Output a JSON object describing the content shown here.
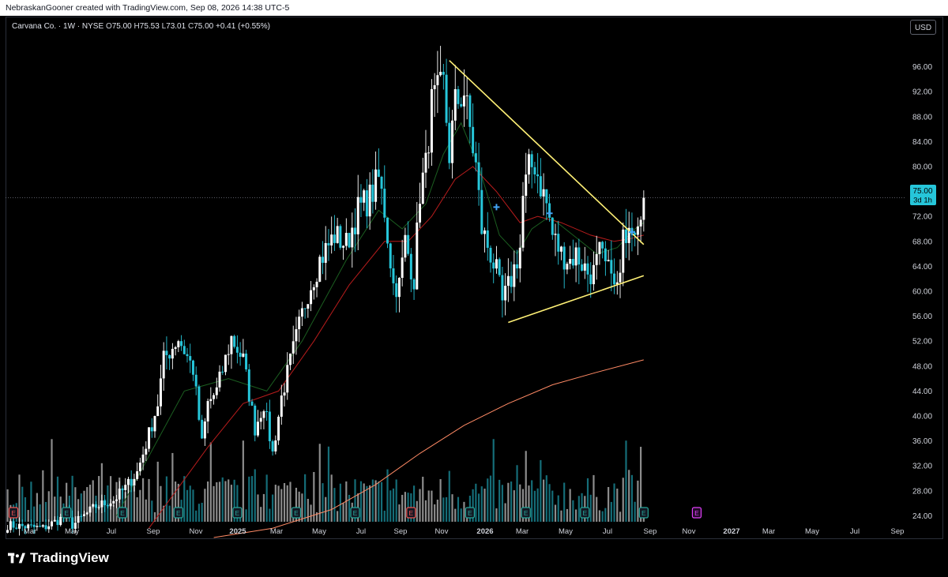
{
  "header": {
    "credit": "NebraskanGooner created with TradingView.com, Sep 08, 2026 14:38 UTC-5"
  },
  "legend": {
    "name": "Carvana Co. · 1W · NYSE",
    "o_label": "O",
    "o": "75.00",
    "h_label": "H",
    "h": "75.53",
    "l_label": "L",
    "l": "73.01",
    "c_label": "C",
    "c": "75.00",
    "change": "+0.41 (+0.55%)"
  },
  "currency_button": "USD",
  "price_tag": {
    "price": "75.00",
    "countdown": "3d 1h"
  },
  "brand": {
    "name": "TradingView"
  },
  "colors": {
    "background": "#000000",
    "up": "#ffffff",
    "down": "#26c6da",
    "ema_fast": "#1b5e20",
    "ema_mid": "#b71c1c",
    "sma_long": "#ff8a65",
    "trendline": "#fff176",
    "earnings": "#ef5350",
    "earnings_future": "#e040fb"
  },
  "chart_data": {
    "type": "candlestick",
    "interval": "1W",
    "ylim": [
      20,
      100
    ],
    "y_ticks": [
      "96.00",
      "92.00",
      "88.00",
      "84.00",
      "80.00",
      "76.00",
      "72.00",
      "68.00",
      "64.00",
      "60.00",
      "56.00",
      "52.00",
      "48.00",
      "44.00",
      "40.00",
      "36.00",
      "32.00",
      "28.00",
      "24.00"
    ],
    "x_ticks": [
      {
        "label": "Mar",
        "x": 38
      },
      {
        "label": "May",
        "x": 91
      },
      {
        "label": "Jul",
        "x": 141
      },
      {
        "label": "Sep",
        "x": 194
      },
      {
        "label": "Nov",
        "x": 248
      },
      {
        "label": "2025",
        "x": 301
      },
      {
        "label": "Mar",
        "x": 350
      },
      {
        "label": "May",
        "x": 404
      },
      {
        "label": "Jul",
        "x": 457
      },
      {
        "label": "Sep",
        "x": 507
      },
      {
        "label": "Nov",
        "x": 559
      },
      {
        "label": "2026",
        "x": 614
      },
      {
        "label": "Mar",
        "x": 661
      },
      {
        "label": "May",
        "x": 716
      },
      {
        "label": "Jul",
        "x": 769
      },
      {
        "label": "Sep",
        "x": 823
      },
      {
        "label": "Nov",
        "x": 872
      },
      {
        "label": "2027",
        "x": 926
      },
      {
        "label": "Mar",
        "x": 973
      },
      {
        "label": "May",
        "x": 1028
      },
      {
        "label": "Jul",
        "x": 1082
      },
      {
        "label": "Sep",
        "x": 1136
      }
    ],
    "last_price": 75.0,
    "anchors": [
      [
        0,
        22.5
      ],
      [
        12,
        22.0
      ],
      [
        20,
        24.0
      ],
      [
        22,
        22.5
      ],
      [
        30,
        25.5
      ],
      [
        36,
        26.5
      ],
      [
        40,
        28.5
      ],
      [
        44,
        31.0
      ],
      [
        47,
        35.5
      ],
      [
        51,
        42.0
      ],
      [
        53,
        49.0
      ],
      [
        58,
        52.5
      ],
      [
        63,
        47.5
      ],
      [
        66,
        35.5
      ],
      [
        68,
        42.0
      ],
      [
        71,
        44.0
      ],
      [
        76,
        52.5
      ],
      [
        80,
        49.0
      ],
      [
        84,
        38.0
      ],
      [
        87,
        42.0
      ],
      [
        90,
        34.0
      ],
      [
        93,
        43.0
      ],
      [
        98,
        52.5
      ],
      [
        102,
        60.0
      ],
      [
        106,
        65.0
      ],
      [
        111,
        69.0
      ],
      [
        115,
        67.5
      ],
      [
        119,
        73.0
      ],
      [
        123,
        75.0
      ],
      [
        126,
        78.0
      ],
      [
        128,
        73.0
      ],
      [
        131,
        61.0
      ],
      [
        133,
        61.0
      ],
      [
        135,
        68.0
      ],
      [
        138,
        62.0
      ],
      [
        140,
        76.0
      ],
      [
        142,
        80.0
      ],
      [
        144,
        90.0
      ],
      [
        148,
        93.0
      ],
      [
        150,
        82.0
      ],
      [
        152,
        90.0
      ],
      [
        155,
        92.0
      ],
      [
        159,
        80.0
      ],
      [
        161,
        70.0
      ],
      [
        164,
        66.0
      ],
      [
        166,
        63.0
      ],
      [
        168,
        58.0
      ],
      [
        171,
        62.0
      ],
      [
        174,
        67.0
      ],
      [
        175,
        75.0
      ],
      [
        177,
        79.5
      ],
      [
        179,
        80.5
      ],
      [
        181,
        77.0
      ],
      [
        183,
        74.0
      ],
      [
        185,
        69.0
      ],
      [
        188,
        66.0
      ],
      [
        191,
        65.0
      ],
      [
        193,
        66.0
      ],
      [
        197,
        63.0
      ],
      [
        199,
        63.0
      ],
      [
        201,
        66.0
      ],
      [
        204,
        63.0
      ],
      [
        205,
        65.0
      ],
      [
        206,
        60.0
      ],
      [
        208,
        62.0
      ],
      [
        209,
        68.0
      ],
      [
        211,
        72.0
      ],
      [
        213,
        71.0
      ],
      [
        215,
        74.0
      ],
      [
        216,
        75.0
      ]
    ],
    "ema_fast": [
      [
        37,
        24.0
      ],
      [
        60,
        44.0
      ],
      [
        75,
        46.0
      ],
      [
        88,
        44.0
      ],
      [
        100,
        52.0
      ],
      [
        115,
        65.0
      ],
      [
        126,
        73.0
      ],
      [
        134,
        70.0
      ],
      [
        142,
        74.0
      ],
      [
        148,
        82.0
      ],
      [
        154,
        87.0
      ],
      [
        160,
        80.0
      ],
      [
        167,
        69.0
      ],
      [
        173,
        66.0
      ],
      [
        178,
        70.0
      ],
      [
        184,
        72.0
      ],
      [
        192,
        69.0
      ],
      [
        200,
        66.0
      ],
      [
        207,
        67.0
      ],
      [
        213,
        70.0
      ],
      [
        216,
        71.0
      ]
    ],
    "ema_mid": [
      [
        48,
        22.0
      ],
      [
        68,
        35.0
      ],
      [
        80,
        42.0
      ],
      [
        92,
        44.0
      ],
      [
        104,
        52.0
      ],
      [
        116,
        61.0
      ],
      [
        128,
        68.0
      ],
      [
        136,
        68.0
      ],
      [
        144,
        72.0
      ],
      [
        152,
        78.0
      ],
      [
        158,
        80.0
      ],
      [
        166,
        76.0
      ],
      [
        174,
        71.0
      ],
      [
        180,
        72.0
      ],
      [
        188,
        71.0
      ],
      [
        198,
        69.0
      ],
      [
        206,
        68.0
      ],
      [
        212,
        68.5
      ],
      [
        216,
        69.0
      ]
    ],
    "sma_long": [
      [
        70,
        20.5
      ],
      [
        90,
        22.0
      ],
      [
        110,
        25.0
      ],
      [
        125,
        29.0
      ],
      [
        140,
        34.0
      ],
      [
        155,
        38.5
      ],
      [
        170,
        42.0
      ],
      [
        185,
        45.0
      ],
      [
        200,
        47.0
      ],
      [
        216,
        49.0
      ]
    ],
    "trendlines": [
      {
        "from": {
          "i": 150,
          "v": 97.0
        },
        "to": {
          "i": 216,
          "v": 67.5
        }
      },
      {
        "from": {
          "i": 170,
          "v": 55.0
        },
        "to": {
          "i": 216,
          "v": 62.5
        }
      }
    ],
    "markers": [
      {
        "i": 166,
        "v": 73.5
      },
      {
        "i": 184,
        "v": 72.5
      },
      {
        "i": 212,
        "v": 69.5
      }
    ],
    "earnings": [
      {
        "i": 2,
        "color": "red"
      },
      {
        "i": 20,
        "color": "green"
      },
      {
        "i": 39,
        "color": "green"
      },
      {
        "i": 58,
        "color": "green"
      },
      {
        "i": 78,
        "color": "green"
      },
      {
        "i": 98,
        "color": "green"
      },
      {
        "i": 118,
        "color": "green"
      },
      {
        "i": 137,
        "color": "red"
      },
      {
        "i": 157,
        "color": "green"
      },
      {
        "i": 176,
        "color": "green"
      },
      {
        "i": 196,
        "color": "green"
      },
      {
        "i": 216,
        "color": "green"
      },
      {
        "i": 234,
        "color": "future"
      }
    ]
  }
}
